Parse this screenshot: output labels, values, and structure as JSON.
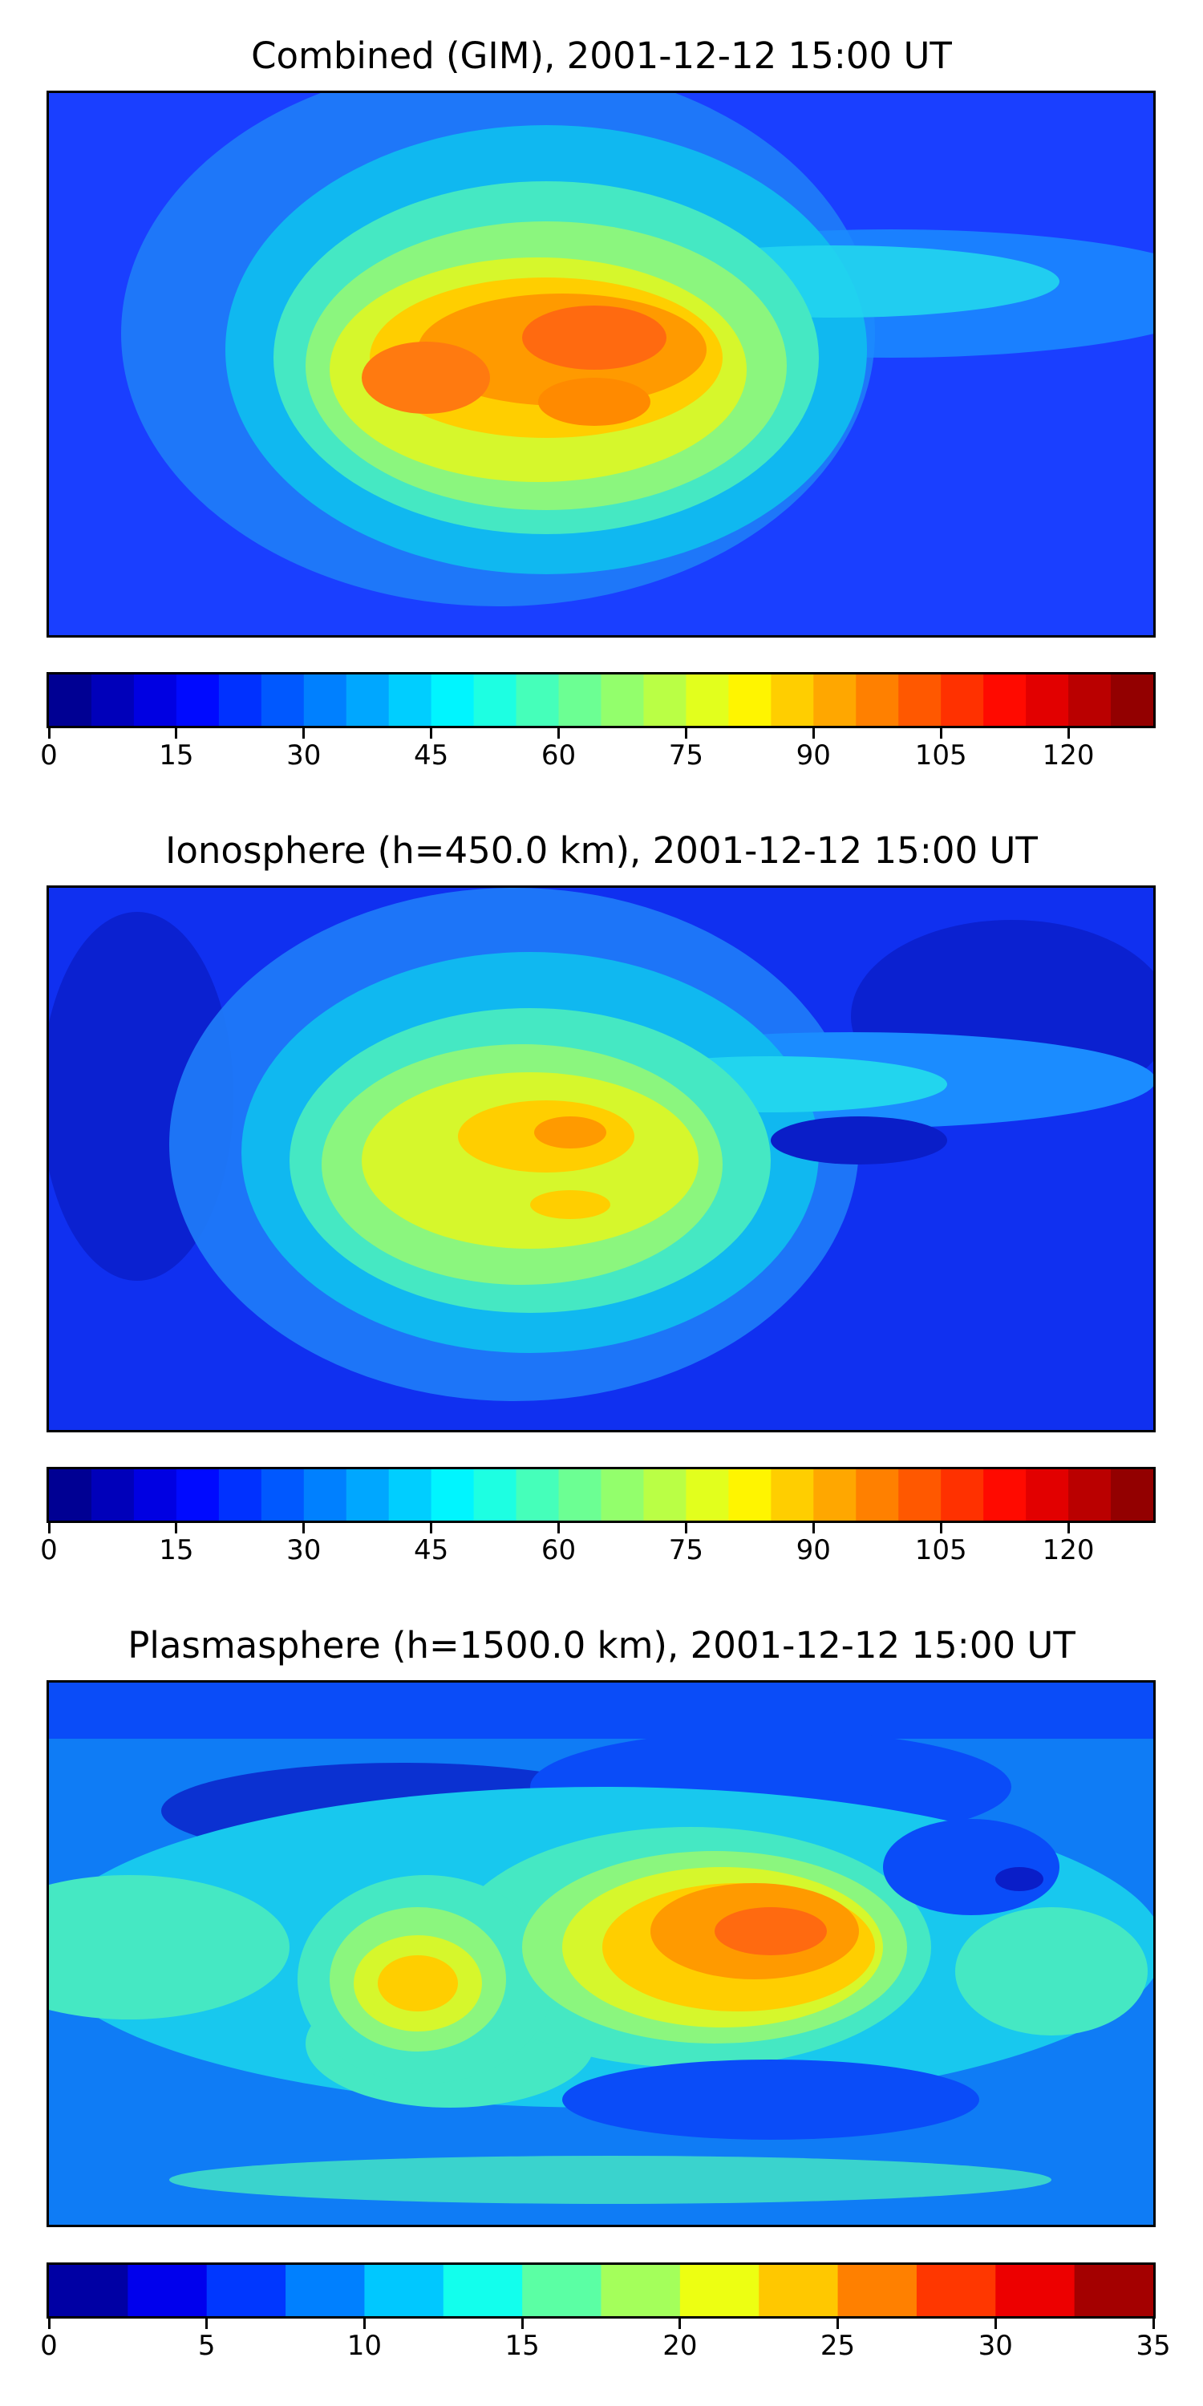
{
  "panels": [
    {
      "title": "Combined (GIM), 2001-12-12 15:00 UT",
      "background_color": "#1a3fff",
      "colorbar": {
        "min": 0,
        "max": 130,
        "step": 5,
        "tick_labels": [
          "0",
          "15",
          "30",
          "45",
          "60",
          "75",
          "90",
          "105",
          "120"
        ]
      }
    },
    {
      "title": "Ionosphere  (h=450.0 km), 2001-12-12 15:00 UT",
      "background_color": "#1030f0",
      "colorbar": {
        "min": 0,
        "max": 130,
        "step": 5,
        "tick_labels": [
          "0",
          "15",
          "30",
          "45",
          "60",
          "75",
          "90",
          "105",
          "120"
        ]
      }
    },
    {
      "title": "Plasmasphere (h=1500.0 km), 2001-12-12 15:00 UT",
      "background_color": "#0f7cf5",
      "colorbar": {
        "min": 0,
        "max": 35,
        "step": 2.5,
        "tick_labels": [
          "0",
          "5",
          "10",
          "15",
          "20",
          "25",
          "30",
          "35"
        ]
      }
    }
  ],
  "colormap": "jet"
}
